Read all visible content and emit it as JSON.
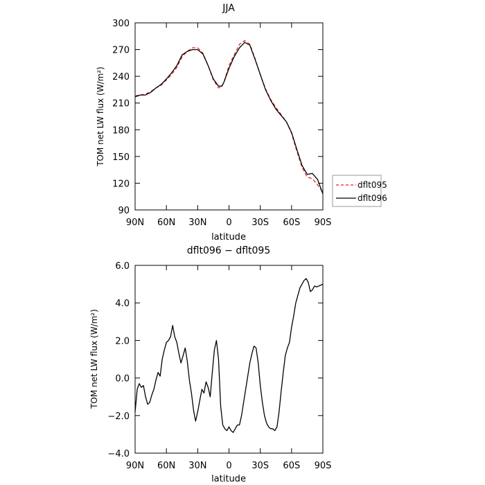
{
  "chart_data": [
    {
      "type": "line",
      "title": "JJA",
      "xlabel": "latitude",
      "ylabel": "TOM net LW flux (W/m²)",
      "xlim": [
        90,
        -90
      ],
      "ylim": [
        90,
        300
      ],
      "xticks": [
        90,
        60,
        30,
        0,
        -30,
        -60,
        -90
      ],
      "xtick_labels": [
        "90N",
        "60N",
        "30N",
        "0",
        "30S",
        "60S",
        "90S"
      ],
      "yticks": [
        90,
        120,
        150,
        180,
        210,
        240,
        270,
        300
      ],
      "ytick_labels": [
        "90",
        "120",
        "150",
        "180",
        "210",
        "240",
        "270",
        "300"
      ],
      "grid": false,
      "legend": "right",
      "series": [
        {
          "name": "dflt095",
          "color": "#e02020",
          "dash": "dashed",
          "x": [
            90,
            85,
            80,
            75,
            70,
            65,
            60,
            55,
            50,
            45,
            40,
            35,
            30,
            25,
            20,
            15,
            10,
            7,
            5,
            0,
            -5,
            -10,
            -15,
            -20,
            -25,
            -30,
            -35,
            -40,
            -45,
            -50,
            -55,
            -60,
            -65,
            -70,
            -75,
            -80,
            -85,
            -90
          ],
          "y": [
            218,
            219,
            220,
            223,
            227,
            230,
            236,
            242,
            250,
            262,
            268,
            272,
            272,
            266,
            252,
            236,
            227,
            228,
            233,
            252,
            264,
            276,
            280,
            276,
            260,
            242,
            226,
            214,
            205,
            197,
            189,
            176,
            156,
            138,
            127,
            125,
            118,
            110
          ]
        },
        {
          "name": "dflt096",
          "color": "#000000",
          "dash": "solid",
          "x": [
            90,
            85,
            80,
            75,
            70,
            65,
            60,
            55,
            50,
            45,
            40,
            35,
            30,
            25,
            20,
            15,
            10,
            7,
            5,
            0,
            -5,
            -10,
            -15,
            -20,
            -25,
            -30,
            -35,
            -40,
            -45,
            -50,
            -55,
            -60,
            -65,
            -70,
            -75,
            -80,
            -85,
            -90
          ],
          "y": [
            217,
            219,
            219,
            222,
            227,
            231,
            237,
            244,
            252,
            264,
            268,
            270,
            270,
            265,
            252,
            237,
            229,
            229,
            233,
            249,
            262,
            272,
            278,
            275,
            259,
            242,
            225,
            213,
            203,
            196,
            189,
            177,
            158,
            140,
            130,
            131,
            124,
            108
          ]
        }
      ]
    },
    {
      "type": "line",
      "title": "dflt096 − dflt095",
      "xlabel": "latitude",
      "ylabel": "TOM net LW flux (W/m²)",
      "xlim": [
        90,
        -90
      ],
      "ylim": [
        -4,
        6
      ],
      "xticks": [
        90,
        60,
        30,
        0,
        -30,
        -60,
        -90
      ],
      "xtick_labels": [
        "90N",
        "60N",
        "30N",
        "0",
        "30S",
        "60S",
        "90S"
      ],
      "yticks": [
        -4,
        -2,
        0,
        2,
        4,
        6
      ],
      "ytick_labels": [
        "−4.0",
        "−2.0",
        "0.0",
        "2.0",
        "4.0",
        "6.0"
      ],
      "grid": false,
      "series": [
        {
          "color": "#000000",
          "dash": "solid",
          "x": [
            90,
            88,
            86,
            84,
            82,
            80,
            78,
            76,
            74,
            72,
            70,
            68,
            66,
            64,
            62,
            60,
            58,
            56,
            54,
            52,
            50,
            48,
            46,
            44,
            42,
            40,
            38,
            36,
            34,
            32,
            30,
            28,
            26,
            24,
            22,
            20,
            18,
            16,
            14,
            12,
            10,
            8,
            6,
            4,
            2,
            0,
            -2,
            -4,
            -6,
            -8,
            -10,
            -12,
            -14,
            -16,
            -18,
            -20,
            -22,
            -24,
            -26,
            -28,
            -30,
            -32,
            -34,
            -36,
            -38,
            -40,
            -42,
            -44,
            -46,
            -48,
            -50,
            -52,
            -54,
            -56,
            -58,
            -60,
            -62,
            -64,
            -66,
            -68,
            -70,
            -72,
            -74,
            -76,
            -78,
            -80,
            -82,
            -84,
            -86,
            -88,
            -90
          ],
          "y": [
            -1.8,
            -0.6,
            -0.3,
            -0.5,
            -0.4,
            -1.0,
            -1.4,
            -1.3,
            -0.9,
            -0.6,
            -0.1,
            0.3,
            0.1,
            1.0,
            1.5,
            1.9,
            2.0,
            2.2,
            2.8,
            2.2,
            1.9,
            1.3,
            0.8,
            1.2,
            1.6,
            0.9,
            -0.1,
            -0.8,
            -1.7,
            -2.3,
            -1.8,
            -1.2,
            -0.6,
            -0.8,
            -0.2,
            -0.5,
            -1.0,
            0.3,
            1.5,
            2.0,
            1.0,
            -1.5,
            -2.5,
            -2.7,
            -2.8,
            -2.6,
            -2.8,
            -2.9,
            -2.7,
            -2.5,
            -2.5,
            -2.0,
            -1.3,
            -0.6,
            0.1,
            0.8,
            1.3,
            1.7,
            1.6,
            0.8,
            -0.4,
            -1.3,
            -2.0,
            -2.4,
            -2.6,
            -2.7,
            -2.7,
            -2.8,
            -2.6,
            -1.8,
            -0.7,
            0.3,
            1.2,
            1.6,
            1.9,
            2.7,
            3.3,
            4.0,
            4.4,
            4.8,
            5.0,
            5.2,
            5.3,
            5.1,
            4.6,
            4.7,
            4.9,
            4.85,
            4.9,
            4.95,
            5.0
          ]
        }
      ]
    }
  ]
}
